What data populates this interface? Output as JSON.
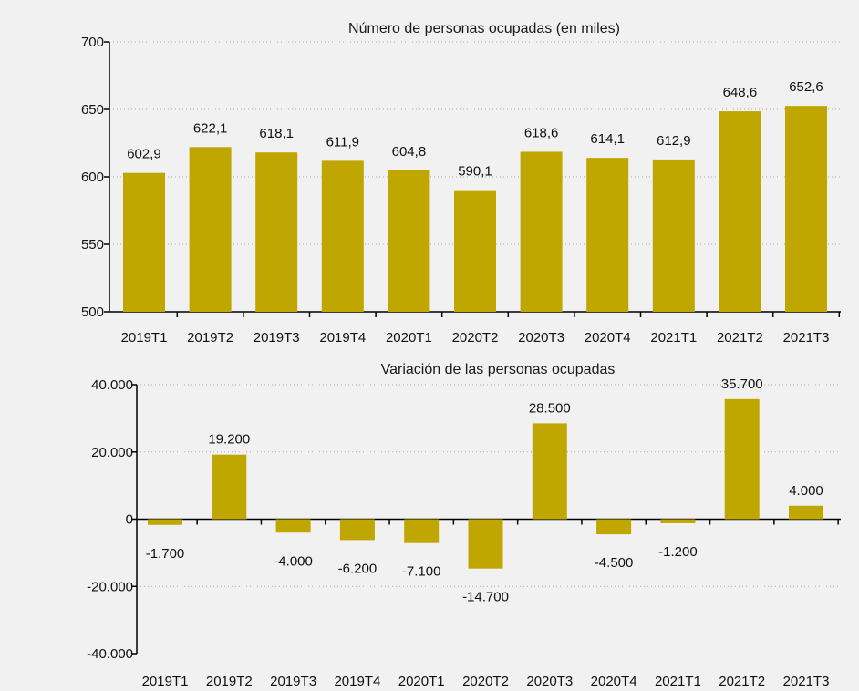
{
  "chart_data": [
    {
      "type": "bar",
      "title": "Número de personas ocupadas (en miles)",
      "categories": [
        "2019T1",
        "2019T2",
        "2019T3",
        "2019T4",
        "2020T1",
        "2020T2",
        "2020T3",
        "2020T4",
        "2021T1",
        "2021T2",
        "2021T3"
      ],
      "values": [
        602.9,
        622.1,
        618.1,
        611.9,
        604.8,
        590.1,
        618.6,
        614.1,
        612.9,
        648.6,
        652.6
      ],
      "value_labels": [
        "602,9",
        "622,1",
        "618,1",
        "611,9",
        "604,8",
        "590,1",
        "618,6",
        "614,1",
        "612,9",
        "648,6",
        "652,6"
      ],
      "ylim": [
        500,
        700
      ],
      "yticks": [
        500,
        550,
        600,
        650,
        700
      ],
      "ytick_labels": [
        "500",
        "550",
        "600",
        "650",
        "700"
      ],
      "grid": true,
      "xlabel": "",
      "ylabel": ""
    },
    {
      "type": "bar",
      "title": "Variación de las personas ocupadas",
      "categories": [
        "2019T1",
        "2019T2",
        "2019T3",
        "2019T4",
        "2020T1",
        "2020T2",
        "2020T3",
        "2020T4",
        "2021T1",
        "2021T2",
        "2021T3"
      ],
      "values": [
        -1700,
        19200,
        -4000,
        -6200,
        -7100,
        -14700,
        28500,
        -4500,
        -1200,
        35700,
        4000
      ],
      "value_labels": [
        "-1.700",
        "19.200",
        "-4.000",
        "-6.200",
        "-7.100",
        "-14.700",
        "28.500",
        "-4.500",
        "-1.200",
        "35.700",
        "4.000"
      ],
      "ylim": [
        -40000,
        40000
      ],
      "yticks": [
        -40000,
        -20000,
        0,
        20000,
        40000
      ],
      "ytick_labels": [
        "-40.000",
        "-20.000",
        "0",
        "20.000",
        "40.000"
      ],
      "grid": true,
      "xlabel": "",
      "ylabel": ""
    }
  ],
  "colors": {
    "bar": "#bfa600",
    "background": "#f1f1f1",
    "axis": "#000000",
    "grid": "#a8a8a8"
  }
}
